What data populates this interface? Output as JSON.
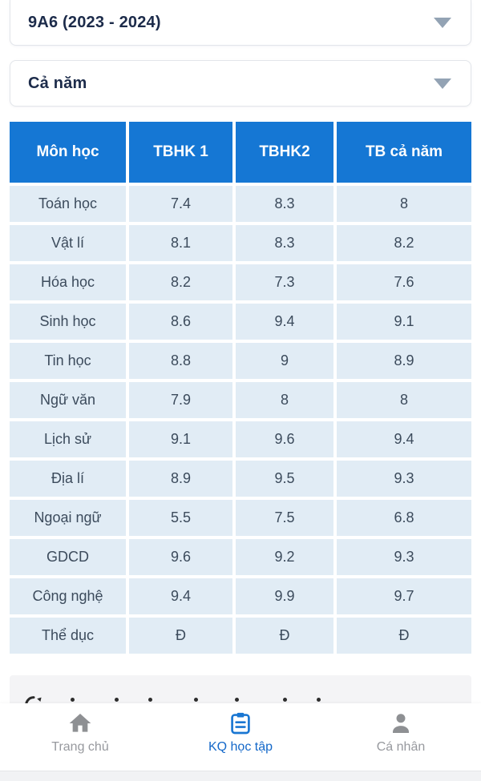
{
  "selectors": {
    "class_year": {
      "value": "9A6 (2023 - 2024)"
    },
    "period": {
      "value": "Cả năm"
    }
  },
  "table": {
    "headers": [
      "Môn học",
      "TBHK 1",
      "TBHK2",
      "TB cả năm"
    ],
    "rows": [
      [
        "Toán học",
        "7.4",
        "8.3",
        "8"
      ],
      [
        "Vật lí",
        "8.1",
        "8.3",
        "8.2"
      ],
      [
        "Hóa học",
        "8.2",
        "7.3",
        "7.6"
      ],
      [
        "Sinh học",
        "8.6",
        "9.4",
        "9.1"
      ],
      [
        "Tin học",
        "8.8",
        "9",
        "8.9"
      ],
      [
        "Ngữ văn",
        "7.9",
        "8",
        "8"
      ],
      [
        "Lịch sử",
        "9.1",
        "9.6",
        "9.4"
      ],
      [
        "Địa lí",
        "8.9",
        "9.5",
        "9.3"
      ],
      [
        "Ngoại ngữ",
        "5.5",
        "7.5",
        "6.8"
      ],
      [
        "GDCD",
        "9.6",
        "9.2",
        "9.3"
      ],
      [
        "Công nghệ",
        "9.4",
        "9.9",
        "9.7"
      ],
      [
        "Thể dục",
        "Đ",
        "Đ",
        "Đ"
      ]
    ]
  },
  "bottom_nav": {
    "items": [
      {
        "label": "Trang chủ",
        "icon": "home-icon",
        "active": false
      },
      {
        "label": "KQ học tập",
        "icon": "clipboard-icon",
        "active": true
      },
      {
        "label": "Cá nhân",
        "icon": "person-icon",
        "active": false
      }
    ]
  },
  "colors": {
    "header_blue": "#1577d4",
    "row_background": "#e1ecf5",
    "cell_text": "#3c4b5c",
    "selector_text": "#1c2b4a",
    "caret_gray": "#93a3b4",
    "nav_active_blue": "#1468c9",
    "nav_inactive_gray": "#8e9093"
  }
}
